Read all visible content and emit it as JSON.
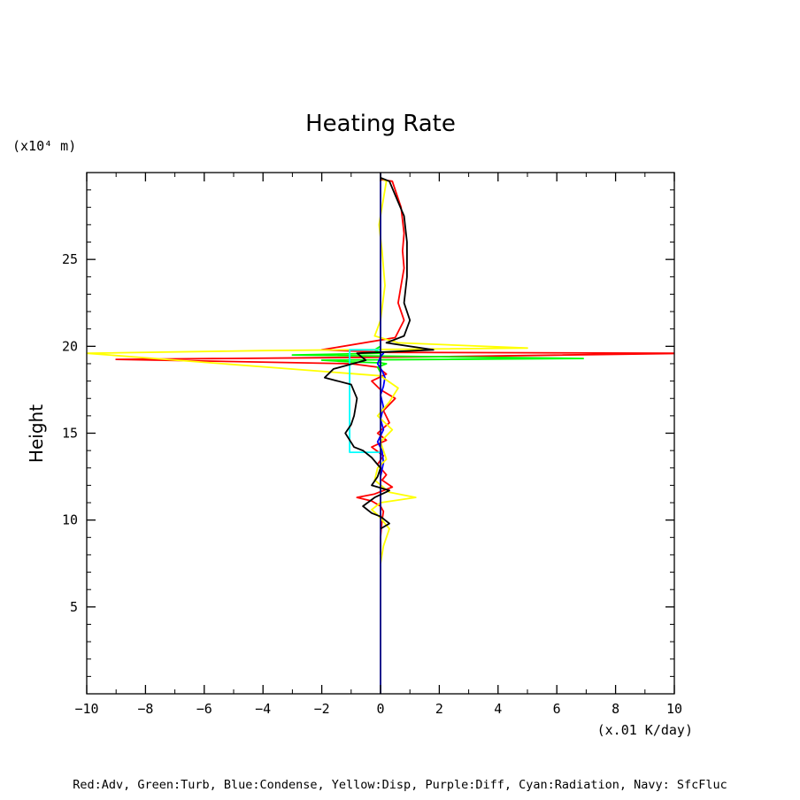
{
  "chart_data": {
    "type": "line",
    "title": "Heating Rate",
    "xlabel": "",
    "ylabel": "Height",
    "y_unit": "(x10⁴ m)",
    "x_unit": "(x.01 K/day)",
    "xlim": [
      -10,
      10
    ],
    "ylim": [
      0,
      30
    ],
    "x_ticks": [
      -10,
      -8,
      -6,
      -4,
      -2,
      0,
      2,
      4,
      6,
      8,
      10
    ],
    "y_ticks": [
      5,
      10,
      15,
      20,
      25
    ],
    "grid": false,
    "footer_legend": "Red:Adv, Green:Turb, Blue:Condense, Yellow:Disp, Purple:Diff, Cyan:Radiation, Navy: SfcFluc",
    "series": [
      {
        "name": "Adv",
        "color": "#ff0000",
        "x": [
          0.0,
          0.0,
          0.05,
          0.1,
          0.0,
          -0.3,
          -0.8,
          -0.2,
          0.4,
          0.05,
          0.2,
          -0.1,
          0.1,
          -0.3,
          0.2,
          -0.1,
          0.3,
          0.1,
          0.5,
          0.0,
          -0.3,
          0.2,
          -0.1,
          -1.0,
          -9.0,
          2.0,
          10.5,
          0.3,
          -2.0,
          0.5,
          0.8,
          0.6,
          0.7,
          0.8,
          0.75,
          0.8,
          0.7,
          0.4,
          0.0
        ],
        "y": [
          8.0,
          9.0,
          10.0,
          10.5,
          10.8,
          11.1,
          11.3,
          11.5,
          11.9,
          12.3,
          12.6,
          13.2,
          13.7,
          14.2,
          14.6,
          15.0,
          15.6,
          16.3,
          17.0,
          17.5,
          18.0,
          18.4,
          18.8,
          19.0,
          19.25,
          19.4,
          19.6,
          19.65,
          19.8,
          20.5,
          21.5,
          22.5,
          23.5,
          24.5,
          25.5,
          26.5,
          28.0,
          29.5,
          29.6
        ]
      },
      {
        "name": "Turb",
        "color": "#00ff00",
        "x": [
          0.0,
          -0.1,
          0.2,
          0.0,
          -1.0,
          -2.0,
          6.9,
          -3.0,
          0.0,
          -0.2,
          0.0
        ],
        "y": [
          18.5,
          18.8,
          19.0,
          19.05,
          19.1,
          19.2,
          19.3,
          19.5,
          19.6,
          19.8,
          20.0
        ]
      },
      {
        "name": "Condense",
        "color": "#0000ff",
        "x": [
          0.0,
          0.1,
          0.05,
          -0.1,
          0.1,
          0.0,
          0.1,
          0.0,
          0.1,
          0.15,
          0.05,
          -0.1,
          0.0,
          0.1,
          0.0
        ],
        "y": [
          12.5,
          13.3,
          14.0,
          14.5,
          15.2,
          15.8,
          16.5,
          17.2,
          17.7,
          18.2,
          18.6,
          19.0,
          19.4,
          19.6,
          19.7
        ]
      },
      {
        "name": "Disp",
        "color": "#ffff00",
        "x": [
          0.0,
          0.1,
          0.3,
          -0.1,
          -0.3,
          0.0,
          1.2,
          0.3,
          -0.2,
          -0.1,
          0.2,
          0.0,
          0.4,
          -0.1,
          0.3,
          0.6,
          0.0,
          -10.0,
          -4.0,
          5.0,
          0.6,
          -0.2,
          0.0,
          0.15,
          0.05,
          -0.05,
          0.1,
          0.2,
          0.0
        ],
        "y": [
          7.5,
          8.5,
          9.5,
          10.3,
          10.6,
          11.0,
          11.3,
          11.6,
          12.3,
          13.0,
          13.5,
          14.5,
          15.2,
          16.0,
          16.8,
          17.6,
          18.3,
          19.6,
          19.75,
          19.9,
          20.2,
          20.6,
          21.5,
          23.5,
          25.5,
          27.0,
          28.5,
          29.5,
          29.7
        ]
      },
      {
        "name": "Radiation",
        "color": "#00ffff",
        "x": [
          0.0,
          -1.05,
          -1.05,
          -0.5,
          0.0,
          0.0
        ],
        "y": [
          13.9,
          13.9,
          19.8,
          19.8,
          19.8,
          20.1
        ]
      },
      {
        "name": "SfcFluc",
        "color": "#000080",
        "x": [
          0.0,
          0.0
        ],
        "y": [
          0.0,
          30.0
        ]
      },
      {
        "name": "",
        "color": "#000000",
        "x": [
          0.0,
          0.3,
          0.0,
          -0.3,
          -0.6,
          -0.2,
          0.3,
          -0.3,
          -0.1,
          0.0,
          -0.3,
          -0.6,
          -0.9,
          -1.2,
          -1.0,
          -0.9,
          -0.85,
          -0.8,
          -1.0,
          -1.9,
          -1.6,
          -0.5,
          -0.8,
          1.8,
          0.2,
          0.8,
          1.0,
          0.8,
          0.9,
          0.9,
          0.8,
          0.3,
          0.0
        ],
        "y": [
          9.5,
          9.8,
          10.2,
          10.4,
          10.8,
          11.3,
          11.7,
          12.0,
          12.5,
          13.0,
          13.6,
          14.0,
          14.2,
          15.0,
          15.5,
          16.0,
          16.5,
          17.0,
          17.8,
          18.2,
          18.7,
          19.2,
          19.6,
          19.8,
          20.2,
          20.6,
          21.5,
          22.5,
          24.0,
          26.0,
          27.5,
          29.5,
          29.7
        ]
      }
    ]
  }
}
